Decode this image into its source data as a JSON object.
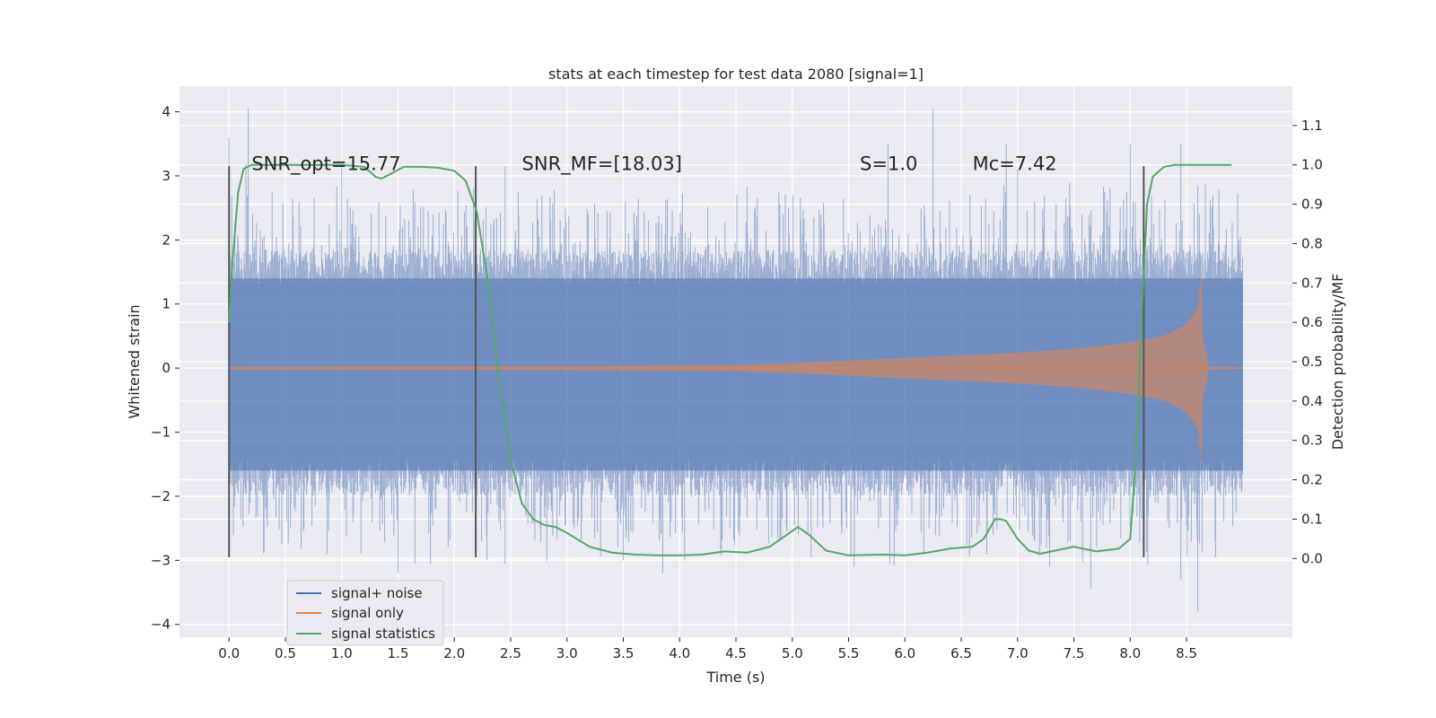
{
  "chart_data": {
    "type": "line",
    "title": "stats at each timestep for test data 2080 [signal=1]",
    "xlabel": "Time (s)",
    "ylabel": "Whitened strain",
    "ylabel_right": "Detection probability/MF",
    "xlim": [
      -0.44,
      9.44
    ],
    "ylim": [
      -4.2,
      4.4
    ],
    "ylim_right": [
      -0.2,
      1.2
    ],
    "x_ticks": [
      "0.0",
      "0.5",
      "1.0",
      "1.5",
      "2.0",
      "2.5",
      "3.0",
      "3.5",
      "4.0",
      "4.5",
      "5.0",
      "5.5",
      "6.0",
      "6.5",
      "7.0",
      "7.5",
      "8.0",
      "8.5"
    ],
    "y_ticks": [
      "−4",
      "−3",
      "−2",
      "−1",
      "0",
      "1",
      "2",
      "3",
      "4"
    ],
    "y_ticks_right": [
      "0.0",
      "0.1",
      "0.2",
      "0.3",
      "0.4",
      "0.5",
      "0.6",
      "0.7",
      "0.8",
      "0.9",
      "1.0",
      "1.1"
    ],
    "grid": true,
    "legend_position": "lower-left",
    "annotations": [
      {
        "text": "SNR_opt=15.77",
        "x": 0.2,
        "y": 3.2
      },
      {
        "text": "SNR_MF=[18.03]",
        "x": 2.6,
        "y": 3.2
      },
      {
        "text": "S=1.0",
        "x": 5.6,
        "y": 3.2
      },
      {
        "text": "Mc=7.42",
        "x": 6.6,
        "y": 3.2
      }
    ],
    "vertical_markers": [
      0.0,
      2.19,
      8.12
    ],
    "vertical_marker_range": [
      -2.95,
      3.15
    ],
    "series": [
      {
        "name": "signal+ noise",
        "axis": "left",
        "color": "#4c72b0",
        "x_range": [
          0.0,
          9.0
        ],
        "band_core": [
          -1.6,
          1.4
        ],
        "spikes": [
          {
            "x": 0.0,
            "y": 3.6
          },
          {
            "x": 0.17,
            "y": 4.05
          },
          {
            "x": 0.15,
            "y": 3.2
          },
          {
            "x": 1.0,
            "y": 3.2
          },
          {
            "x": 1.5,
            "y": -3.2
          },
          {
            "x": 1.65,
            "y": -3.05
          },
          {
            "x": 2.45,
            "y": -3.05
          },
          {
            "x": 2.45,
            "y": 3.15
          },
          {
            "x": 3.5,
            "y": -3.0
          },
          {
            "x": 3.85,
            "y": -3.2
          },
          {
            "x": 5.85,
            "y": 3.5
          },
          {
            "x": 6.25,
            "y": 4.05
          },
          {
            "x": 6.9,
            "y": 3.5
          },
          {
            "x": 7.65,
            "y": -3.45
          },
          {
            "x": 8.0,
            "y": 3.5
          },
          {
            "x": 8.45,
            "y": 3.5
          },
          {
            "x": 8.45,
            "y": -3.3
          },
          {
            "x": 8.6,
            "y": -3.8
          },
          {
            "x": 5.55,
            "y": -3.1
          },
          {
            "x": 7.0,
            "y": 3.1
          }
        ]
      },
      {
        "name": "signal only",
        "axis": "left",
        "color": "#dd8452",
        "x": [
          0.0,
          3.0,
          4.5,
          5.0,
          6.0,
          7.0,
          7.5,
          8.0,
          8.3,
          8.5,
          8.6,
          8.63,
          8.65,
          8.7,
          9.0
        ],
        "amplitude": [
          0.02,
          0.03,
          0.05,
          0.08,
          0.16,
          0.24,
          0.3,
          0.4,
          0.5,
          0.68,
          0.95,
          1.5,
          0.4,
          0.02,
          0.01
        ]
      },
      {
        "name": "signal statistics",
        "axis": "right",
        "color": "#55a868",
        "x": [
          0.0,
          0.03,
          0.08,
          0.13,
          0.2,
          0.4,
          0.6,
          0.8,
          1.0,
          1.2,
          1.3,
          1.35,
          1.42,
          1.55,
          1.7,
          1.85,
          2.0,
          2.1,
          2.2,
          2.3,
          2.4,
          2.5,
          2.6,
          2.7,
          2.8,
          2.9,
          3.0,
          3.2,
          3.4,
          3.6,
          3.8,
          4.0,
          4.2,
          4.4,
          4.6,
          4.8,
          4.95,
          5.05,
          5.15,
          5.3,
          5.5,
          5.8,
          6.0,
          6.2,
          6.4,
          6.6,
          6.7,
          6.8,
          6.85,
          6.9,
          7.0,
          7.1,
          7.2,
          7.3,
          7.5,
          7.7,
          7.9,
          8.0,
          8.05,
          8.1,
          8.15,
          8.2,
          8.3,
          8.4,
          8.6,
          8.8,
          8.9
        ],
        "y": [
          0.6,
          0.75,
          0.93,
          0.99,
          1.0,
          1.0,
          1.0,
          1.0,
          1.0,
          0.995,
          0.97,
          0.965,
          0.975,
          0.995,
          0.995,
          0.993,
          0.985,
          0.96,
          0.88,
          0.7,
          0.45,
          0.25,
          0.14,
          0.1,
          0.085,
          0.08,
          0.065,
          0.03,
          0.015,
          0.01,
          0.008,
          0.008,
          0.01,
          0.018,
          0.015,
          0.03,
          0.06,
          0.08,
          0.06,
          0.02,
          0.008,
          0.01,
          0.008,
          0.015,
          0.025,
          0.03,
          0.05,
          0.1,
          0.1,
          0.095,
          0.05,
          0.02,
          0.012,
          0.018,
          0.03,
          0.018,
          0.025,
          0.05,
          0.25,
          0.6,
          0.9,
          0.97,
          0.995,
          1.0,
          1.0,
          1.0,
          1.0
        ]
      }
    ]
  }
}
